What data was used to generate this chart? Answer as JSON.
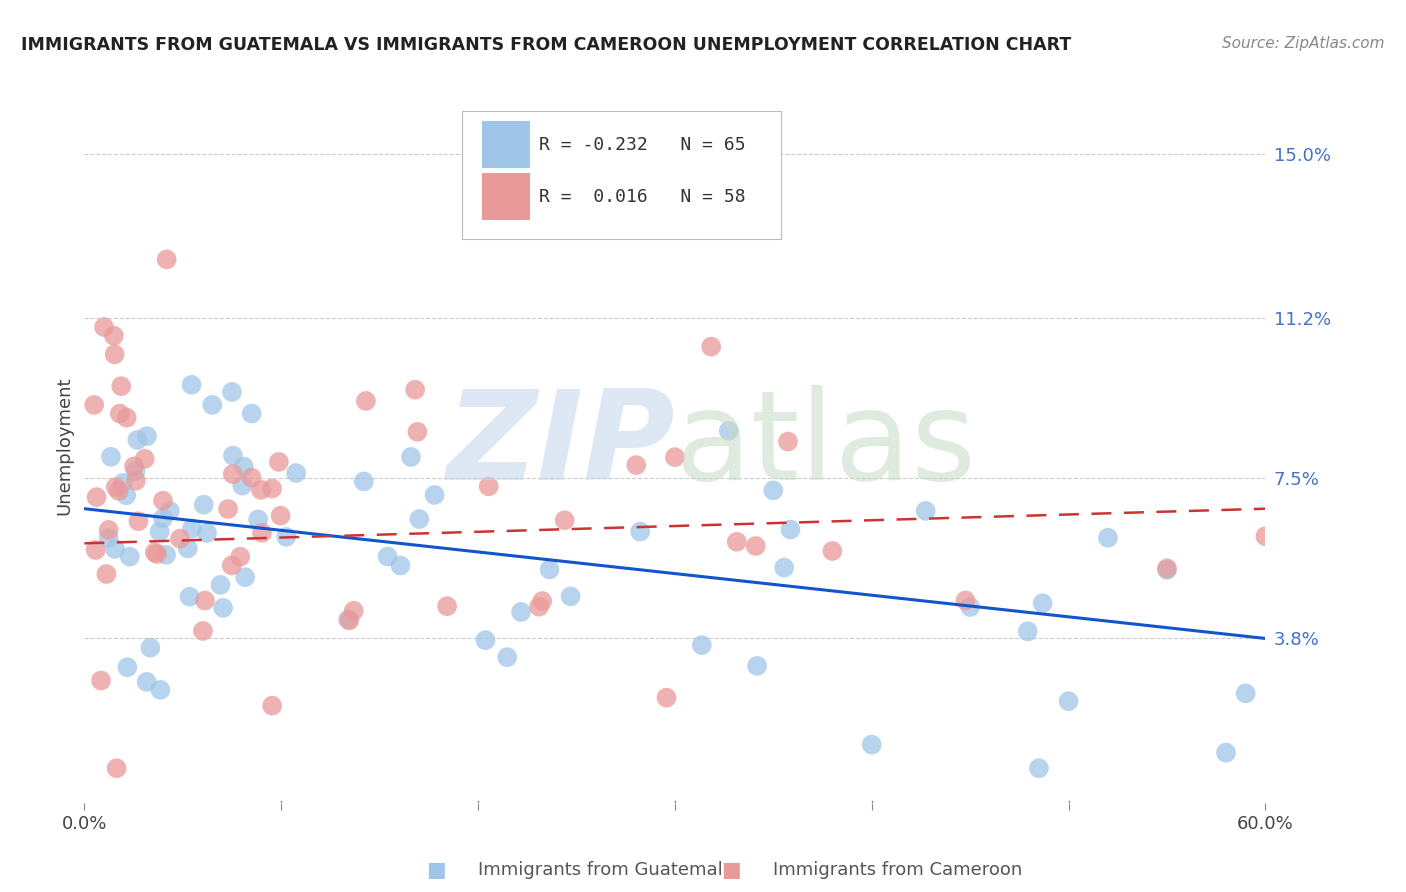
{
  "title": "IMMIGRANTS FROM GUATEMALA VS IMMIGRANTS FROM CAMEROON UNEMPLOYMENT CORRELATION CHART",
  "source": "Source: ZipAtlas.com",
  "ylabel": "Unemployment",
  "xlim": [
    0.0,
    0.6
  ],
  "ylim": [
    0.0,
    0.165
  ],
  "right_yticks": [
    0.038,
    0.075,
    0.112,
    0.15
  ],
  "right_ytick_labels": [
    "3.8%",
    "7.5%",
    "11.2%",
    "15.0%"
  ],
  "guatemala_color": "#9fc5e8",
  "cameroon_color": "#ea9999",
  "trend_guatemala_color": "#1155cc",
  "trend_cameroon_color": "#cc3333",
  "guatemala_R": -0.232,
  "cameroon_R": 0.016,
  "guatemala_N": 65,
  "cameroon_N": 58,
  "guatemala_trend_y_start": 0.068,
  "guatemala_trend_y_end": 0.038,
  "cameroon_trend_y_start": 0.06,
  "cameroon_trend_y_end": 0.068,
  "watermark_zip_color": "#c8d8ee",
  "watermark_atlas_color": "#c8dcc8"
}
